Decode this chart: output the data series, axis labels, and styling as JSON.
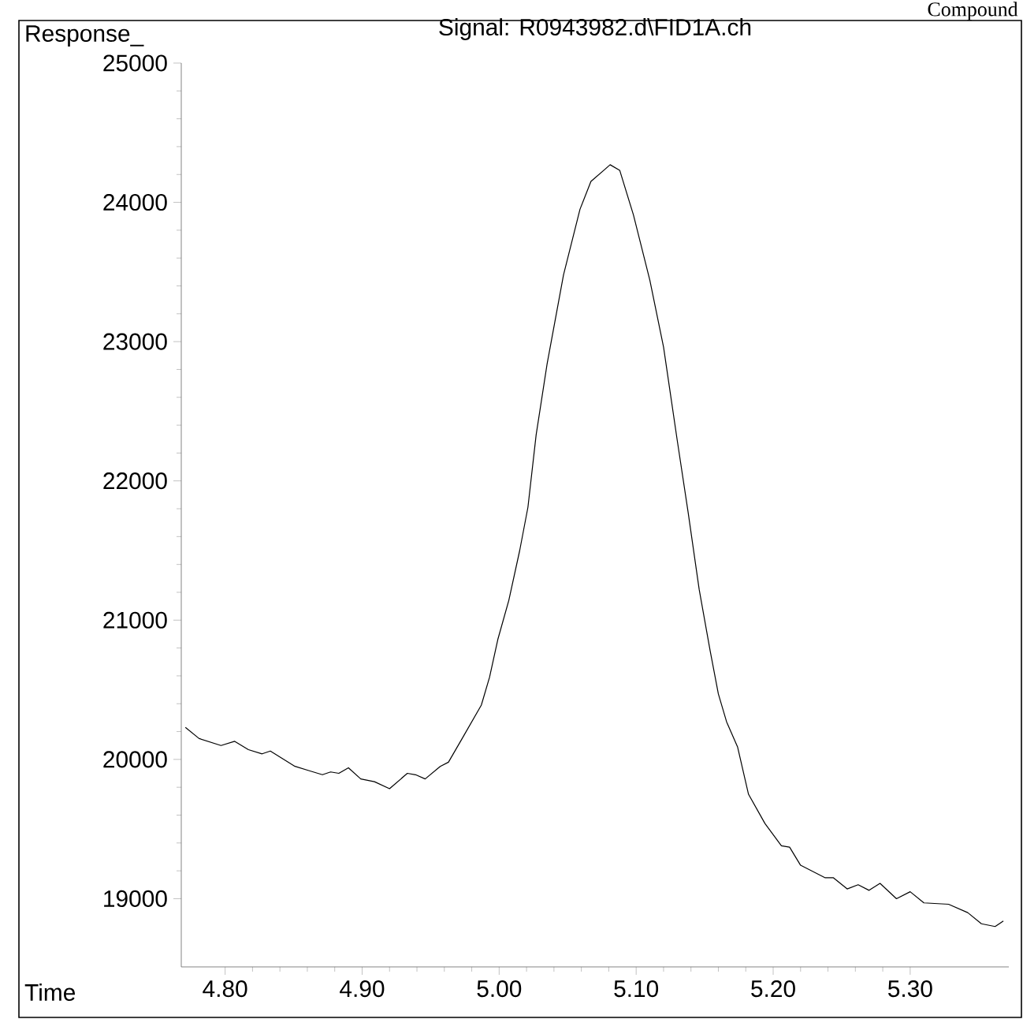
{
  "chart_data": {
    "type": "line",
    "title": "Signal: R0943982.d\\FID1A.ch",
    "xlabel": "Time",
    "ylabel": "Response_",
    "annotations": [
      "Compound"
    ],
    "xlim": [
      4.768,
      5.372
    ],
    "ylim": [
      18510,
      25000
    ],
    "xticks": [
      {
        "value": 4.8,
        "label": "4.80"
      },
      {
        "value": 4.9,
        "label": "4.90"
      },
      {
        "value": 5.0,
        "label": "5.00"
      },
      {
        "value": 5.1,
        "label": "5.10"
      },
      {
        "value": 5.2,
        "label": "5.20"
      },
      {
        "value": 5.3,
        "label": "5.30"
      }
    ],
    "yticks": [
      19000,
      20000,
      21000,
      22000,
      23000,
      24000,
      25000
    ],
    "grid": false,
    "marker": "none",
    "line_style": "solid",
    "series": [
      {
        "color": "#000000",
        "x": [
          4.771,
          4.781,
          4.797,
          4.807,
          4.817,
          4.827,
          4.833,
          4.851,
          4.861,
          4.871,
          4.877,
          4.883,
          4.89,
          4.899,
          4.909,
          4.92,
          4.933,
          4.939,
          4.946,
          4.957,
          4.963,
          4.973,
          4.987,
          4.993,
          4.999,
          5.007,
          5.015,
          5.021,
          5.027,
          5.035,
          5.047,
          5.059,
          5.067,
          5.081,
          5.088,
          5.098,
          5.11,
          5.12,
          5.13,
          5.138,
          5.146,
          5.154,
          5.16,
          5.166,
          5.174,
          5.182,
          5.194,
          5.206,
          5.212,
          5.22,
          5.226,
          5.238,
          5.244,
          5.254,
          5.262,
          5.27,
          5.278,
          5.29,
          5.3,
          5.31,
          5.328,
          5.342,
          5.352,
          5.362,
          5.368
        ],
        "values": [
          20230,
          20150,
          20100,
          20130,
          20070,
          20040,
          20060,
          19950,
          19920,
          19890,
          19910,
          19900,
          19940,
          19860,
          19840,
          19790,
          19900,
          19890,
          19860,
          19950,
          19980,
          20150,
          20390,
          20590,
          20860,
          21140,
          21500,
          21810,
          22330,
          22840,
          23480,
          23950,
          24150,
          24270,
          24230,
          23910,
          23440,
          22960,
          22290,
          21770,
          21220,
          20780,
          20470,
          20270,
          20090,
          19750,
          19540,
          19380,
          19370,
          19240,
          19210,
          19150,
          19150,
          19070,
          19100,
          19060,
          19110,
          19000,
          19050,
          18970,
          18960,
          18900,
          18820,
          18800,
          18840
        ]
      }
    ]
  }
}
